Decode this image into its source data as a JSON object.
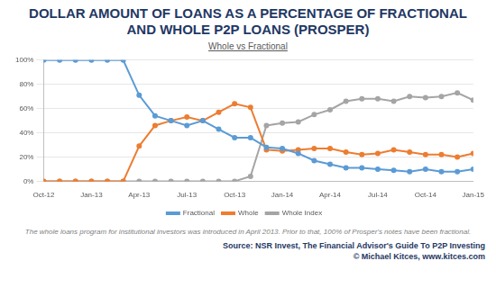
{
  "chart_data": {
    "type": "line",
    "title": "DOLLAR AMOUNT OF LOANS AS A PERCENTAGE OF FRACTIONAL AND WHOLE P2P LOANS (PROSPER)",
    "subtitle": "Whole vs Fractional",
    "annotations": [
      "The whole loans program for institutional investors was introduced in April 2013.  Prior to that, 100% of Prosper's notes have been fractional.",
      "Source: NSR Invest, The Financial Advisor's Guide To P2P Investing",
      "© Michael Kitces, www.kitces.com"
    ],
    "categories": [
      "Oct-12",
      null,
      null,
      "Jan-13",
      null,
      null,
      "Apr-13",
      null,
      null,
      "Jul-13",
      null,
      null,
      "Oct-13",
      null,
      null,
      "Jan-14",
      null,
      null,
      "Apr-14",
      null,
      null,
      "Jul-14",
      null,
      null,
      "Oct-14",
      null,
      null,
      "Jan-15"
    ],
    "series": [
      {
        "name": "Fractional",
        "color": "#5b9bd5",
        "marker": "circle",
        "line_style": "solid",
        "values": [
          100,
          100,
          100,
          100,
          100,
          100,
          71,
          54,
          50,
          46,
          50,
          43,
          36,
          36,
          28,
          27,
          23,
          17,
          14,
          11,
          11,
          10,
          9,
          8,
          10,
          8,
          8,
          10
        ]
      },
      {
        "name": "Whole",
        "color": "#ed7d31",
        "marker": "circle",
        "line_style": "solid",
        "values": [
          0,
          0,
          0,
          0,
          0,
          0,
          29,
          46,
          50,
          53,
          50,
          57,
          64,
          61,
          26,
          25,
          26,
          27,
          27,
          24,
          22,
          23,
          26,
          24,
          22,
          22,
          20,
          23
        ]
      },
      {
        "name": "Whole Index",
        "color": "#a5a5a5",
        "marker": "circle",
        "line_style": "solid",
        "values": [
          0,
          0,
          0,
          0,
          0,
          0,
          0,
          0,
          0,
          0,
          0,
          0,
          0,
          4,
          46,
          48,
          49,
          55,
          59,
          66,
          68,
          68,
          66,
          70,
          69,
          70,
          73,
          67
        ]
      }
    ],
    "ylim": [
      0,
      100
    ],
    "yticks": [
      {
        "value": 0,
        "label": "0%"
      },
      {
        "value": 20,
        "label": "20%"
      },
      {
        "value": 40,
        "label": "40%"
      },
      {
        "value": 60,
        "label": "60%"
      },
      {
        "value": 80,
        "label": "80%"
      },
      {
        "value": 100,
        "label": "100%"
      }
    ],
    "grid": true,
    "legend": "bottom"
  }
}
